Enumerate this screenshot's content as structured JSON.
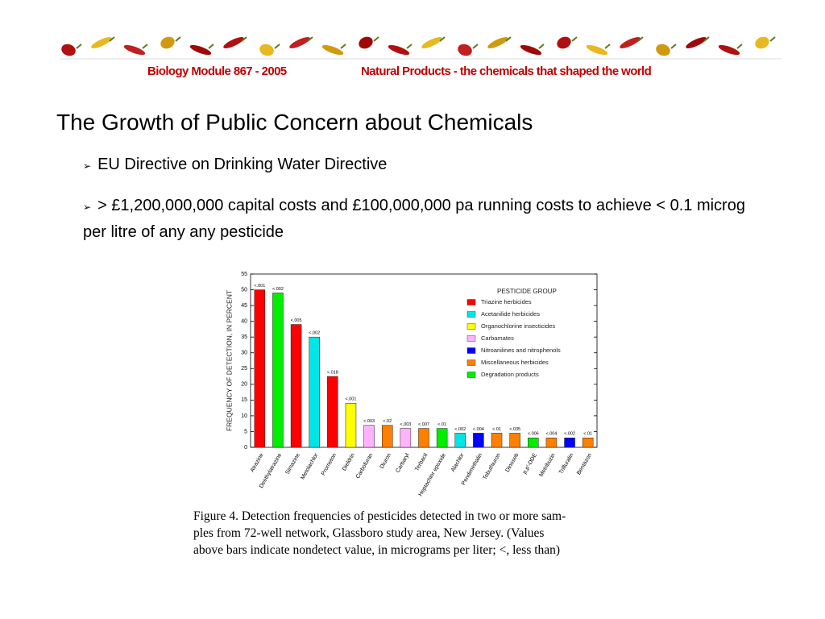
{
  "header": {
    "left": "Biology Module 867 - 2005",
    "right": "Natural Products - the chemicals that shaped the world"
  },
  "title": "The Growth of Public Concern about Chemicals",
  "bullets": [
    "EU Directive on Drinking Water Directive",
    "> £1,200,000,000 capital costs and £100,000,000 pa running costs to achieve < 0.1 microg per litre of any any pesticide"
  ],
  "chart_data": {
    "type": "bar",
    "y_label": "FREQUENCY OF DETECTION, IN PERCENT",
    "categories": [
      "Atrazine",
      "Deethylatrazine",
      "Simazine",
      "Metolachlor",
      "Prometon",
      "Dieldrin",
      "Carbofuran",
      "Diuron",
      "Carbaryl",
      "Terbacil",
      "Heptachlor epoxide",
      "Alachlor",
      "Pendimethalin",
      "Tebuthiuron",
      "Dinoseb",
      "p,p'-DDE",
      "Metribuzin",
      "Trifluralin",
      "Bentazon"
    ],
    "values": [
      50,
      49,
      39,
      35,
      22.5,
      14,
      7,
      7,
      6,
      6,
      6,
      4.5,
      4.5,
      4.5,
      4.5,
      3,
      3,
      3,
      3
    ],
    "colors": [
      "#ff0000",
      "#00ee00",
      "#ff0000",
      "#00e5e5",
      "#ff0000",
      "#ffff00",
      "#ffb3ff",
      "#ff8000",
      "#ffb3ff",
      "#ff8000",
      "#00ee00",
      "#00e5e5",
      "#0000ff",
      "#ff8000",
      "#ff8000",
      "#00ee00",
      "#ff8000",
      "#0000ff",
      "#ff8000"
    ],
    "annotations": [
      "<.001",
      "<.002",
      "<.005",
      "<.002",
      "<.018",
      "<.001",
      "<.003",
      "<.02",
      "<.003",
      "<.007",
      "<.01",
      "<.002",
      "<.004",
      "<.01",
      "<.035",
      "<.006",
      "<.004",
      "<.002",
      "<.01"
    ],
    "ylim": [
      0,
      55
    ],
    "yticks": [
      0,
      5,
      10,
      15,
      20,
      25,
      30,
      35,
      40,
      45,
      50,
      55
    ],
    "legend": {
      "title": "PESTICIDE GROUP",
      "items": [
        {
          "name": "Triazine herbicides",
          "color": "#ff0000"
        },
        {
          "name": "Acetanilide herbicides",
          "color": "#00e5e5"
        },
        {
          "name": "Organochlorine insecticides",
          "color": "#ffff00"
        },
        {
          "name": "Carbamates",
          "color": "#ffb3ff"
        },
        {
          "name": "Nitroanilines and nitrophenols",
          "color": "#0000ff"
        },
        {
          "name": "Miscellaneous herbicides",
          "color": "#ff8000"
        },
        {
          "name": "Degradation products",
          "color": "#00ee00"
        }
      ]
    }
  },
  "caption": [
    "Figure 4. Detection frequencies of pesticides detected in two or more sam-",
    "ples from 72-well network, Glassboro study area, New Jersey. (Values",
    "above bars indicate nondetect value, in micrograms per liter; <, less than)"
  ]
}
